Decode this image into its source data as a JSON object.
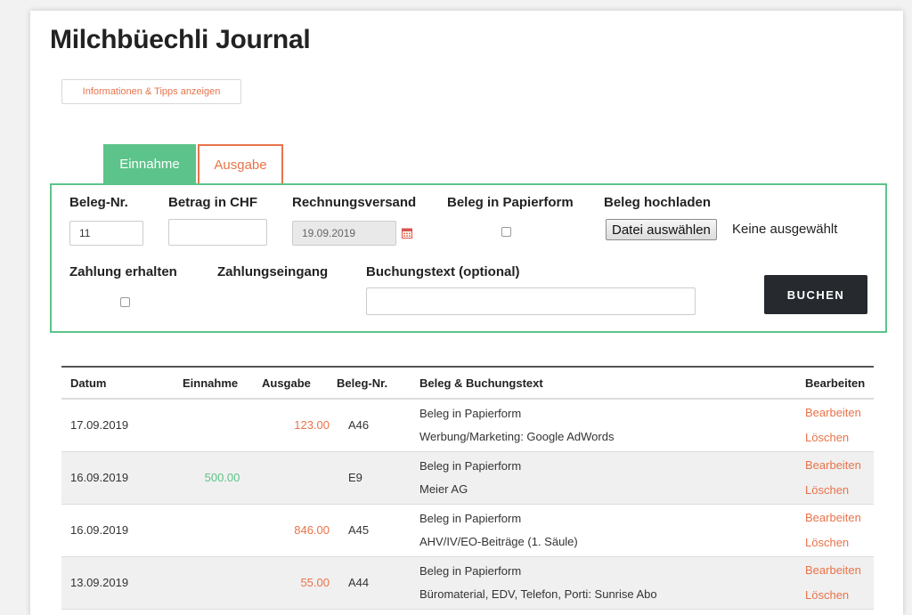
{
  "app": {
    "title": "Milchbüechli Journal"
  },
  "header": {
    "info_button": "Informationen & Tipps anzeigen"
  },
  "tabs": [
    {
      "label": "Einnahme",
      "active": true
    },
    {
      "label": "Ausgabe",
      "active": false
    }
  ],
  "form": {
    "beleg_nr": {
      "label": "Beleg-Nr.",
      "value": "11"
    },
    "betrag": {
      "label": "Betrag in CHF",
      "value": ""
    },
    "rechnungsversand": {
      "label": "Rechnungsversand",
      "value": "19.09.2019"
    },
    "beleg_papier": {
      "label": "Beleg in Papierform",
      "checked": false
    },
    "beleg_upload": {
      "label": "Beleg hochladen",
      "button": "Datei auswählen",
      "status": "Keine ausgewählt"
    },
    "zahlung_erhalten": {
      "label": "Zahlung erhalten",
      "checked": false
    },
    "zahlungseingang": {
      "label": "Zahlungseingang"
    },
    "buchungstext": {
      "label": "Buchungstext (optional)",
      "value": ""
    },
    "submit": "BUCHEN"
  },
  "table": {
    "headers": {
      "datum": "Datum",
      "einnahme": "Einnahme",
      "ausgabe": "Ausgabe",
      "beleg_nr": "Beleg-Nr.",
      "text": "Beleg & Buchungstext",
      "bearbeiten": "Bearbeiten"
    },
    "rows": [
      {
        "datum": "17.09.2019",
        "einnahme": "",
        "ausgabe": "123.00",
        "beleg_nr": "A46",
        "beleg": "Beleg in Papierform",
        "text": "Werbung/Marketing: Google AdWords",
        "edit": "Bearbeiten",
        "delete": "Löschen"
      },
      {
        "datum": "16.09.2019",
        "einnahme": "500.00",
        "ausgabe": "",
        "beleg_nr": "E9",
        "beleg": "Beleg in Papierform",
        "text": "Meier AG",
        "edit": "Bearbeiten",
        "delete": "Löschen"
      },
      {
        "datum": "16.09.2019",
        "einnahme": "",
        "ausgabe": "846.00",
        "beleg_nr": "A45",
        "beleg": "Beleg in Papierform",
        "text": "AHV/IV/EO-Beiträge (1. Säule)",
        "edit": "Bearbeiten",
        "delete": "Löschen"
      },
      {
        "datum": "13.09.2019",
        "einnahme": "",
        "ausgabe": "55.00",
        "beleg_nr": "A44",
        "beleg": "Beleg in Papierform",
        "text": "Büromaterial, EDV, Telefon, Porti: Sunrise Abo",
        "edit": "Bearbeiten",
        "delete": "Löschen"
      }
    ]
  },
  "colors": {
    "accent_green": "#5cc38a",
    "accent_orange": "#e8734a",
    "button_dark": "#262a2f"
  },
  "icons": {
    "calendar": "calendar-icon"
  }
}
